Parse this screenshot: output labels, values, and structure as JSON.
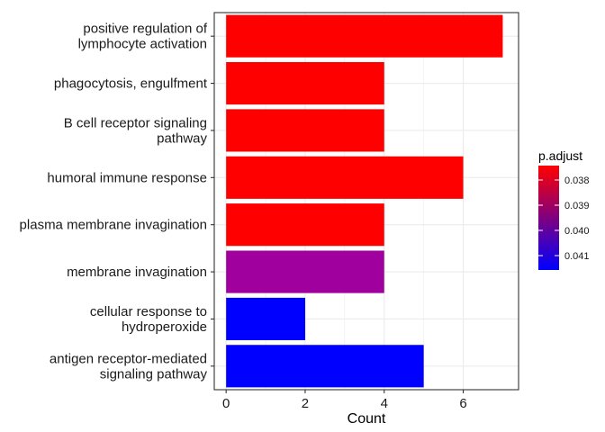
{
  "chart_data": {
    "type": "bar",
    "orientation": "horizontal",
    "categories": [
      [
        "positive regulation of",
        "lymphocyte activation"
      ],
      [
        "phagocytosis, engulfment"
      ],
      [
        "B cell receptor signaling",
        "pathway"
      ],
      [
        "humoral immune response"
      ],
      [
        "plasma membrane invagination"
      ],
      [
        "membrane invagination"
      ],
      [
        "cellular response to",
        "hydroperoxide"
      ],
      [
        "antigen receptor-mediated",
        "signaling pathway"
      ]
    ],
    "values": [
      7,
      4,
      4,
      6,
      4,
      4,
      2,
      5
    ],
    "bar_colors": [
      "#FF0000",
      "#FF0000",
      "#FF0000",
      "#FF0000",
      "#FF0000",
      "#A0009E",
      "#0000FF",
      "#0000FF"
    ],
    "xlabel": "Count",
    "ylabel": "",
    "xlim": [
      -0.3,
      7.4
    ],
    "xticks": [
      0,
      2,
      4,
      6
    ],
    "grid": true,
    "legend": {
      "title": "p.adjust",
      "placement": "right",
      "ticks": [
        "0.038",
        "0.039",
        "0.040",
        "0.041"
      ],
      "color_low": "#FF0000",
      "color_high": "#0000FF"
    }
  }
}
